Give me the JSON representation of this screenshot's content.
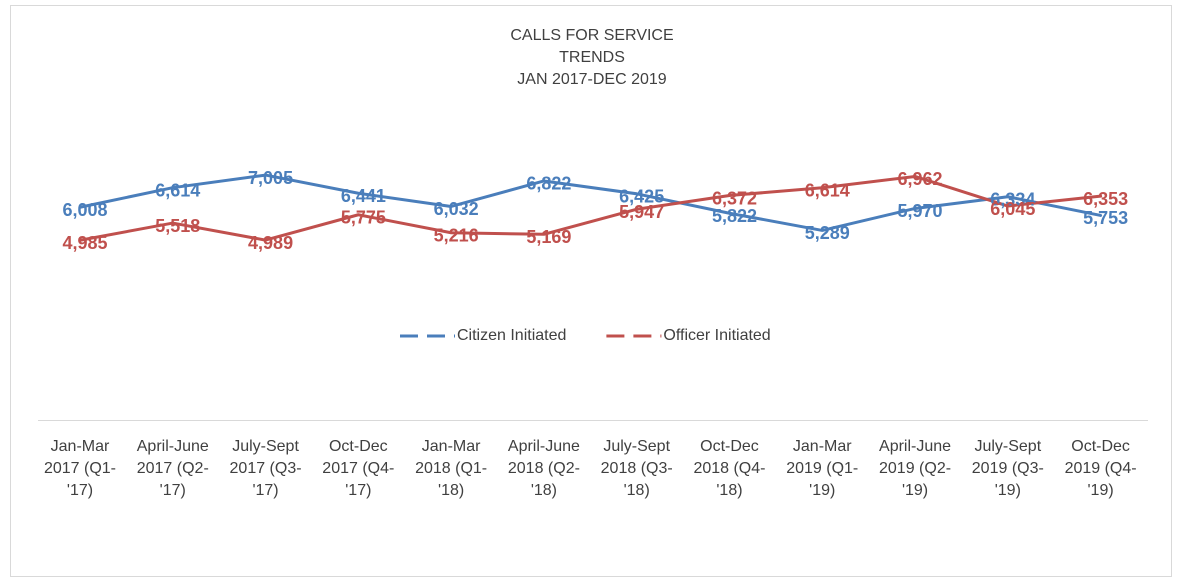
{
  "chart_data": {
    "type": "line",
    "title": [
      "CALLS FOR SERVICE",
      "TRENDS",
      "JAN 2017-DEC 2019"
    ],
    "categories": [
      "Jan-Mar 2017 (Q1-'17)",
      "April-June 2017 (Q2-'17)",
      "July-Sept 2017 (Q3-'17)",
      "Oct-Dec 2017 (Q4-'17)",
      "Jan-Mar 2018 (Q1-'18)",
      "April-June 2018 (Q2-'18)",
      "July-Sept 2018 (Q3-'18)",
      "Oct-Dec 2018 (Q4-'18)",
      "Jan-Mar 2019 (Q1-'19)",
      "April-June 2019 (Q2-'19)",
      "July-Sept 2019 (Q3-'19)",
      "Oct-Dec 2019 (Q4-'19)"
    ],
    "series": [
      {
        "name": "Citizen Initiated",
        "color": "#4a7ebb",
        "values": [
          6008,
          6614,
          7005,
          6441,
          6032,
          6822,
          6425,
          5822,
          5289,
          5970,
          6334,
          5753
        ],
        "value_labels": [
          "6,008",
          "6,614",
          "7,005",
          "6,441",
          "6,032",
          "6,822",
          "6,425",
          "5,822",
          "5,289",
          "5,970",
          "6,334",
          "5,753"
        ]
      },
      {
        "name": "Officer Initiated",
        "color": "#c0504d",
        "values": [
          4985,
          5518,
          4989,
          5775,
          5216,
          5169,
          5947,
          6372,
          6614,
          6962,
          6045,
          6353
        ],
        "value_labels": [
          "4,985",
          "5,518",
          "4,989",
          "5,775",
          "5,216",
          "5,169",
          "5,947",
          "6,372",
          "6,614",
          "6,962",
          "6,045",
          "6,353"
        ]
      }
    ],
    "ylim": [
      0,
      8000
    ],
    "legend": "middle"
  }
}
